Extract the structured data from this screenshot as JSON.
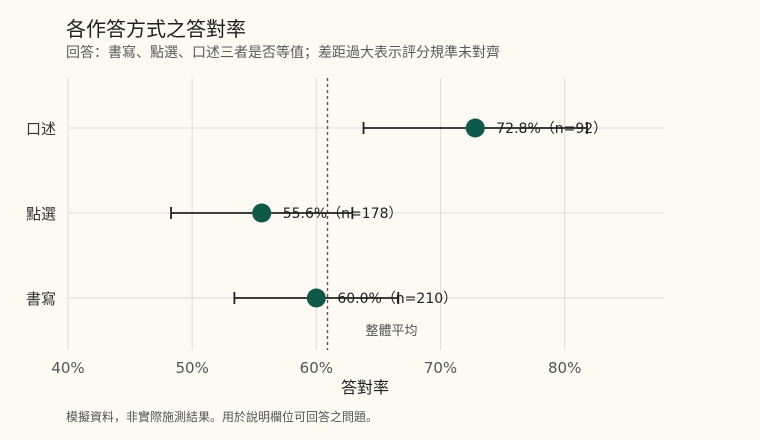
{
  "chart_data": {
    "type": "scatter",
    "title": "各作答方式之答對率",
    "subtitle": "回答：書寫、點選、口述三者是否等值；差距過大表示評分規準未對齊",
    "xlabel": "答對率",
    "ylabel": "",
    "xlim": [
      0.4,
      0.88
    ],
    "xticks": [
      0.4,
      0.5,
      0.6,
      0.7,
      0.8
    ],
    "xtick_labels": [
      "40%",
      "50%",
      "60%",
      "70%",
      "80%"
    ],
    "categories": [
      "口述",
      "點選",
      "書寫"
    ],
    "points": [
      {
        "category": "口述",
        "value": 0.728,
        "ci_low": 0.638,
        "ci_high": 0.818,
        "label": "72.8%（n=92）"
      },
      {
        "category": "點選",
        "value": 0.556,
        "ci_low": 0.483,
        "ci_high": 0.629,
        "label": "55.6%（n=178）"
      },
      {
        "category": "書寫",
        "value": 0.6,
        "ci_low": 0.534,
        "ci_high": 0.666,
        "label": "60.0%（n=210）"
      }
    ],
    "reference_line": {
      "value": 0.609,
      "label": "整體平均"
    },
    "grid": true,
    "colors": {
      "point": "#0e5a4a",
      "errorbar": "#222222",
      "reference": "#555555",
      "grid": "#dcdcdc"
    },
    "caption": "模擬資料，非實際施測結果。用於說明欄位可回答之問題。"
  }
}
